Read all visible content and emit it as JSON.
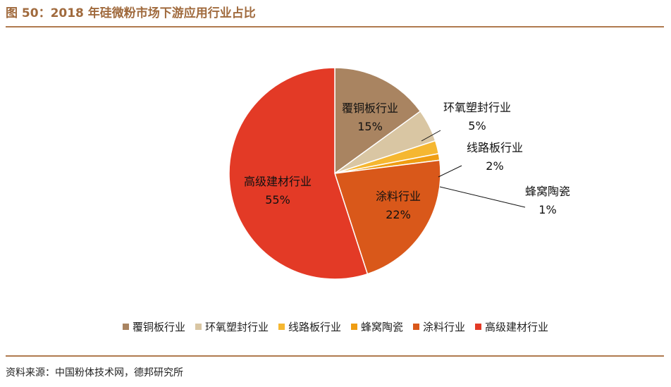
{
  "header": {
    "title": "图 50：2018 年硅微粉市场下游应用行业占比"
  },
  "footer": {
    "source": "资料来源：中国粉体技术网，德邦研究所"
  },
  "chart_data": {
    "type": "pie",
    "title": "图 50：2018 年硅微粉市场下游应用行业占比",
    "categories": [
      "覆铜板行业",
      "环氧塑封行业",
      "线路板行业",
      "蜂窝陶瓷",
      "涂料行业",
      "高级建材行业"
    ],
    "values": [
      15,
      5,
      2,
      1,
      22,
      55
    ],
    "value_labels": [
      "15%",
      "5%",
      "2%",
      "1%",
      "22%",
      "55%"
    ],
    "colors": [
      "#a98461",
      "#d9c6a3",
      "#f5b731",
      "#ef9d12",
      "#d9581a",
      "#e33a26"
    ],
    "legend_position": "bottom",
    "start_angle_deg": 0,
    "direction": "clockwise"
  }
}
